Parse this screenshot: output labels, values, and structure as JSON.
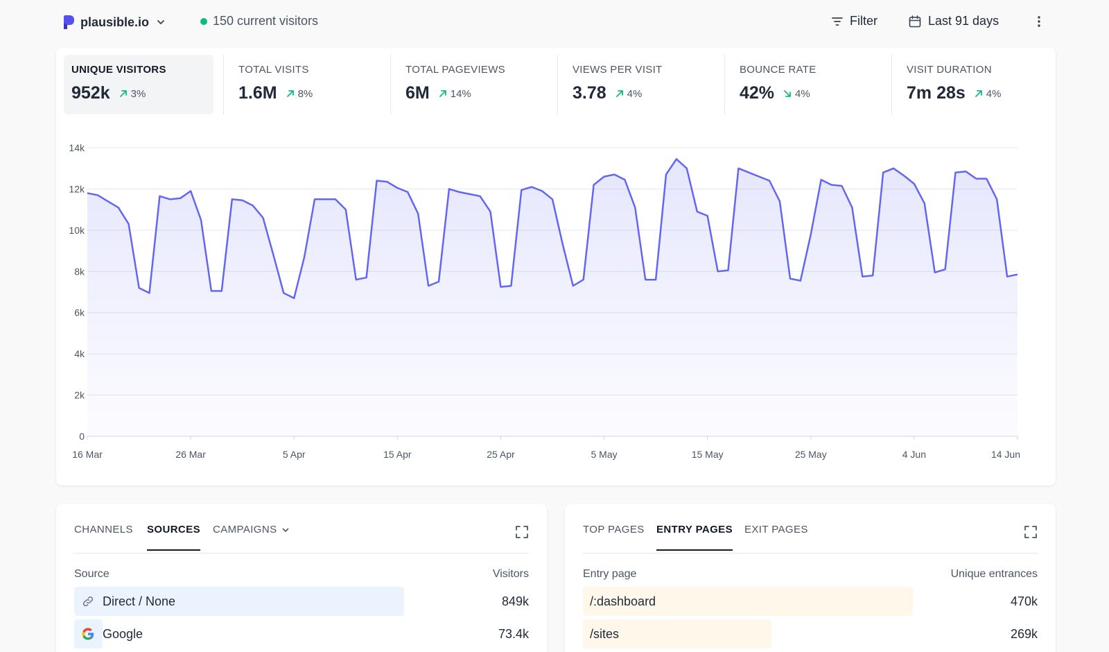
{
  "header": {
    "site_name": "plausible.io",
    "current_visitors": "150 current visitors",
    "filter_label": "Filter",
    "period_label": "Last 91 days"
  },
  "metrics": [
    {
      "label": "UNIQUE VISITORS",
      "value": "952k",
      "change": "3%",
      "direction": "up"
    },
    {
      "label": "TOTAL VISITS",
      "value": "1.6M",
      "change": "8%",
      "direction": "up"
    },
    {
      "label": "TOTAL PAGEVIEWS",
      "value": "6M",
      "change": "14%",
      "direction": "up"
    },
    {
      "label": "VIEWS PER VISIT",
      "value": "3.78",
      "change": "4%",
      "direction": "up"
    },
    {
      "label": "BOUNCE RATE",
      "value": "42%",
      "change": "4%",
      "direction": "down"
    },
    {
      "label": "VISIT DURATION",
      "value": "7m 28s",
      "change": "4%",
      "direction": "up"
    }
  ],
  "chart_data": {
    "type": "area",
    "title": "",
    "xlabel": "",
    "ylabel": "",
    "ylim": [
      0,
      14000
    ],
    "yticks": [
      "0",
      "2k",
      "4k",
      "6k",
      "8k",
      "10k",
      "12k",
      "14k"
    ],
    "xticks": [
      "16 Mar",
      "26 Mar",
      "5 Apr",
      "15 Apr",
      "25 Apr",
      "5 May",
      "15 May",
      "25 May",
      "4 Jun",
      "14 Jun"
    ],
    "x_start": "16 Mar",
    "x_end": "14 Jun",
    "grid": true,
    "color": "#6366f1",
    "series": [
      {
        "values": [
          11800,
          11700,
          11400,
          11100,
          10300,
          7200,
          6950,
          11650,
          11500,
          11550,
          11900,
          10500,
          7050,
          7050,
          11500,
          11450,
          11200,
          10600,
          8800,
          6950,
          6700,
          8700,
          11500,
          11500,
          11500,
          11000,
          7600,
          7700,
          12400,
          12350,
          12050,
          11850,
          10800,
          7300,
          7500,
          12000,
          11850,
          11750,
          11650,
          10900,
          7250,
          7300,
          11950,
          12100,
          11900,
          11500,
          9300,
          7300,
          7600,
          12200,
          12600,
          12700,
          12450,
          11100,
          7600,
          7600,
          12700,
          13450,
          13000,
          10900,
          10700,
          8000,
          8050,
          13000,
          12800,
          12600,
          12400,
          11400,
          7650,
          7550,
          9800,
          12450,
          12200,
          12150,
          11100,
          7750,
          7800,
          12800,
          13000,
          12650,
          12250,
          11300,
          7950,
          8100,
          12800,
          12850,
          12500,
          12500,
          11500,
          7750,
          7850
        ]
      }
    ]
  },
  "sources": {
    "tabs": [
      {
        "label": "CHANNELS"
      },
      {
        "label": "SOURCES"
      },
      {
        "label": "CAMPAIGNS"
      }
    ],
    "col_label": "Source",
    "col_value": "Visitors",
    "bar_color": "#ebf3fe",
    "rows": [
      {
        "label": "Direct / None",
        "value": "849k",
        "share": 0.726,
        "icon": "link-icon"
      },
      {
        "label": "Google",
        "value": "73.4k",
        "share": 0.063,
        "icon": "google-icon"
      }
    ]
  },
  "pages": {
    "tabs": [
      {
        "label": "TOP PAGES"
      },
      {
        "label": "ENTRY PAGES"
      },
      {
        "label": "EXIT PAGES"
      }
    ],
    "col_label": "Entry page",
    "col_value": "Unique entrances",
    "bar_color": "#fef7ea",
    "rows": [
      {
        "label": "/:dashboard",
        "value": "470k",
        "share": 0.726
      },
      {
        "label": "/sites",
        "value": "269k",
        "share": 0.415
      }
    ]
  }
}
